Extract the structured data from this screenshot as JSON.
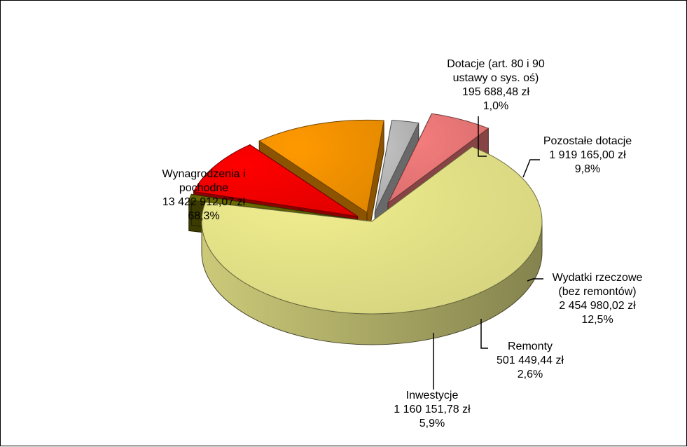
{
  "chart_data": {
    "type": "pie",
    "title": "",
    "currency": "zł",
    "slices": [
      {
        "name": "Wynagrodzenia i pochodne",
        "value": 13422912.07,
        "value_label": "13 422 912,07 zł",
        "percent_label": "68,3%",
        "label_lines": [
          "Wynagrodzenia i",
          "pochodne"
        ],
        "color": "#F0EE8E"
      },
      {
        "name": "Dotacje (art. 80 i 90 ustawy o sys. oś)",
        "value": 195688.48,
        "value_label": "195 688,48 zł",
        "percent_label": "1,0%",
        "label_lines": [
          "Dotacje (art. 80 i 90",
          "ustawy o sys. oś)"
        ],
        "color": "#6B6B00"
      },
      {
        "name": "Pozostałe dotacje",
        "value": 1919165.0,
        "value_label": "1 919 165,00 zł",
        "percent_label": "9,8%",
        "label_lines": [
          "Pozostałe dotacje"
        ],
        "color": "#FF0000"
      },
      {
        "name": "Wydatki rzeczowe (bez remontów)",
        "value": 2454980.02,
        "value_label": "2 454 980,02 zł",
        "percent_label": "12,5%",
        "label_lines": [
          "Wydatki rzeczowe",
          "(bez remontów)"
        ],
        "color": "#FF9900"
      },
      {
        "name": "Remonty",
        "value": 501449.44,
        "value_label": "501 449,44 zł",
        "percent_label": "2,6%",
        "label_lines": [
          "Remonty"
        ],
        "color": "#BFBFBF"
      },
      {
        "name": "Inwestycje",
        "value": 1160151.78,
        "value_label": "1 160 151,78 zł",
        "percent_label": "5,9%",
        "label_lines": [
          "Inwestycje"
        ],
        "color": "#F47C7C"
      }
    ]
  }
}
